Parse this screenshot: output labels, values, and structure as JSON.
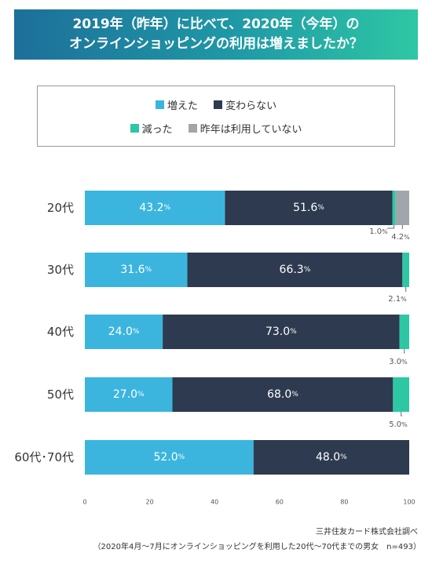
{
  "header": {
    "title_line1": "2019年（昨年）に比べて、2020年（今年）の",
    "title_line2": "オンラインショッピングの利用は増えましたか？"
  },
  "legend": {
    "items": [
      {
        "name": "増えた",
        "color": "#3bb5de"
      },
      {
        "name": "変わらない",
        "color": "#2e3a4f"
      },
      {
        "name": "減った",
        "color": "#2ec7a4"
      },
      {
        "name": "昨年は利用していない",
        "color": "#a1a6ad"
      }
    ]
  },
  "chart_data": {
    "type": "bar",
    "orientation": "horizontal",
    "stacked": true,
    "categories": [
      "20代",
      "30代",
      "40代",
      "50代",
      "60代･70代"
    ],
    "series": [
      {
        "name": "増えた",
        "color": "#3bb5de",
        "values": [
          43.2,
          31.6,
          24.0,
          27.0,
          52.0
        ]
      },
      {
        "name": "変わらない",
        "color": "#2e3a4f",
        "values": [
          51.6,
          66.3,
          73.0,
          68.0,
          48.0
        ]
      },
      {
        "name": "減った",
        "color": "#2ec7a4",
        "values": [
          1.0,
          2.1,
          3.0,
          5.0,
          0
        ]
      },
      {
        "name": "昨年は利用していない",
        "color": "#a1a6ad",
        "values": [
          4.2,
          0,
          0,
          0,
          0
        ]
      }
    ],
    "xlim": [
      0,
      100
    ],
    "xticks": [
      0,
      20,
      40,
      60,
      80,
      100
    ],
    "percent_suffix": "%"
  },
  "source": {
    "line1": "三井住友カード株式会社調べ",
    "line2": "（2020年4月～7月にオンラインショッピングを利用した20代～70代までの男女　n=493）"
  }
}
